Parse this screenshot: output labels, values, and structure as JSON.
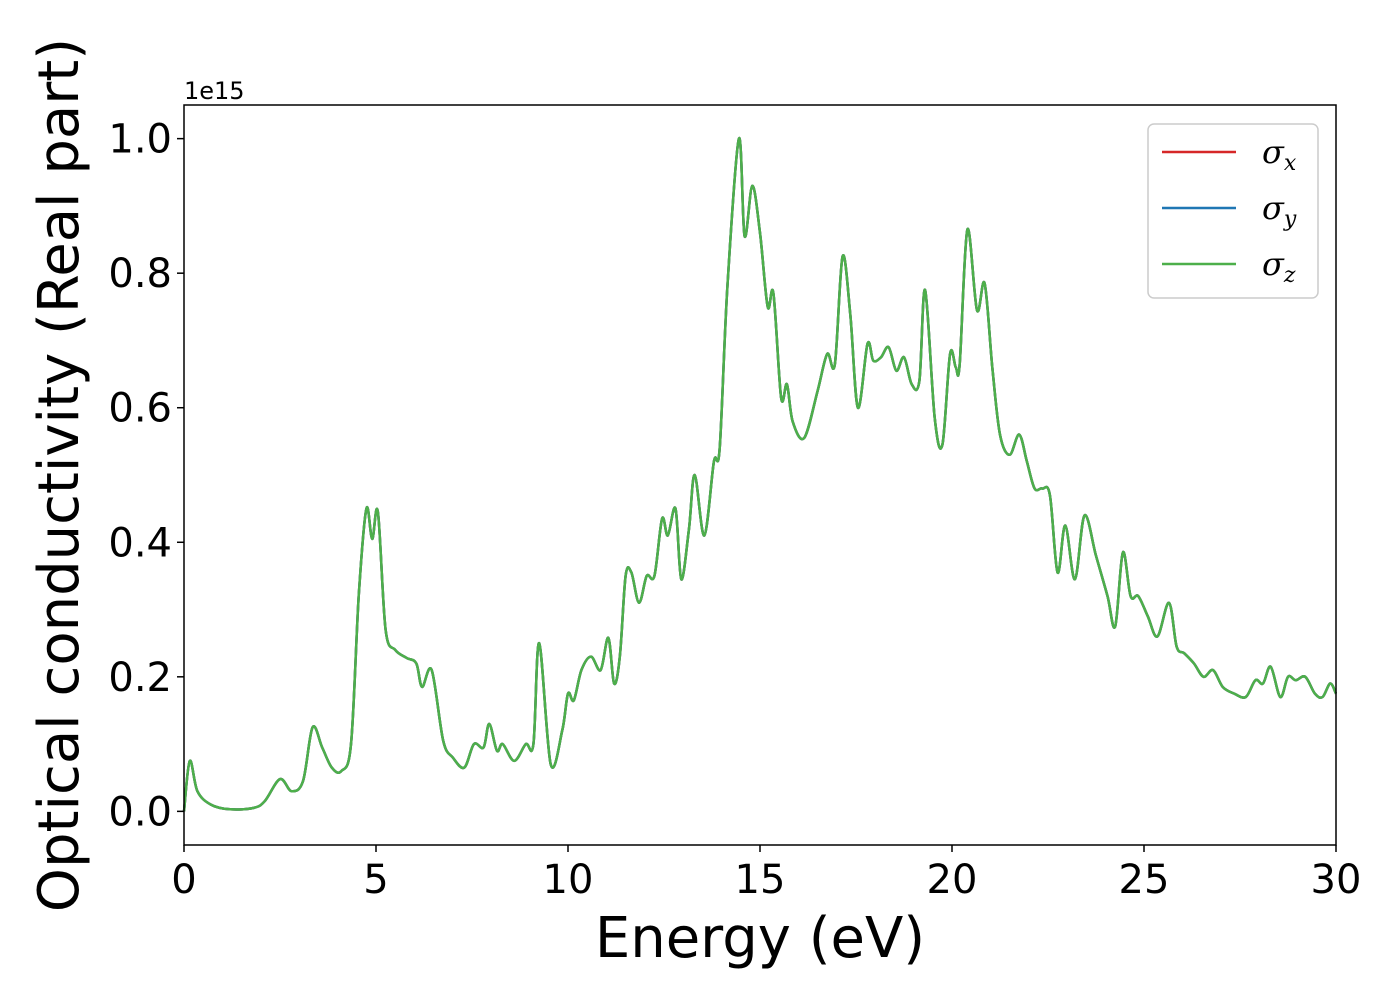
{
  "chart_data": {
    "type": "line",
    "xlabel": "Energy (eV)",
    "ylabel": "Optical conductivity (Real part)",
    "y_offset_label": "1e15",
    "xlim": [
      0,
      30
    ],
    "ylim": [
      -0.05,
      1.05
    ],
    "xticks": [
      0,
      5,
      10,
      15,
      20,
      25,
      30
    ],
    "xtick_labels": [
      "0",
      "5",
      "10",
      "15",
      "20",
      "25",
      "30"
    ],
    "yticks": [
      0.0,
      0.2,
      0.4,
      0.6,
      0.8,
      1.0
    ],
    "ytick_labels": [
      "0.0",
      "0.2",
      "0.4",
      "0.6",
      "0.8",
      "1.0"
    ],
    "grid": false,
    "legend_position": "top-right",
    "series": [
      {
        "name": "σx",
        "symbol": "σ",
        "subscript": "x",
        "color": "#d62728"
      },
      {
        "name": "σy",
        "symbol": "σ",
        "subscript": "y",
        "color": "#1f77b4"
      },
      {
        "name": "σz",
        "symbol": "σ",
        "subscript": "z",
        "color": "#4daf4a"
      }
    ],
    "x": [
      0,
      0.15,
      0.35,
      0.7,
      1.2,
      1.8,
      2.1,
      2.5,
      2.8,
      3.1,
      3.35,
      3.6,
      3.85,
      4.1,
      4.35,
      4.55,
      4.75,
      4.9,
      5.05,
      5.25,
      5.5,
      5.8,
      6.05,
      6.2,
      6.45,
      6.75,
      7.0,
      7.3,
      7.55,
      7.8,
      7.95,
      8.15,
      8.3,
      8.6,
      8.9,
      9.1,
      9.25,
      9.55,
      9.85,
      10.0,
      10.15,
      10.35,
      10.6,
      10.85,
      11.05,
      11.2,
      11.35,
      11.5,
      11.65,
      11.85,
      12.05,
      12.25,
      12.45,
      12.6,
      12.8,
      12.95,
      13.15,
      13.3,
      13.55,
      13.8,
      13.95,
      14.15,
      14.45,
      14.6,
      14.8,
      15.0,
      15.2,
      15.35,
      15.55,
      15.7,
      15.85,
      16.15,
      16.5,
      16.75,
      16.95,
      17.15,
      17.35,
      17.55,
      17.8,
      17.95,
      18.15,
      18.35,
      18.55,
      18.75,
      18.95,
      19.15,
      19.3,
      19.55,
      19.75,
      19.95,
      20.1,
      20.2,
      20.4,
      20.65,
      20.85,
      21.05,
      21.25,
      21.5,
      21.75,
      21.95,
      22.15,
      22.35,
      22.55,
      22.75,
      22.95,
      23.2,
      23.45,
      23.75,
      24.05,
      24.25,
      24.45,
      24.65,
      24.85,
      25.1,
      25.35,
      25.65,
      25.85,
      26.05,
      26.3,
      26.55,
      26.8,
      27.05,
      27.35,
      27.65,
      27.9,
      28.1,
      28.3,
      28.55,
      28.75,
      28.95,
      29.2,
      29.45,
      29.65,
      29.85,
      30.0
    ],
    "values": [
      0.0,
      0.075,
      0.03,
      0.01,
      0.003,
      0.005,
      0.015,
      0.048,
      0.03,
      0.045,
      0.125,
      0.095,
      0.065,
      0.06,
      0.1,
      0.32,
      0.45,
      0.405,
      0.445,
      0.27,
      0.24,
      0.228,
      0.22,
      0.185,
      0.21,
      0.105,
      0.08,
      0.065,
      0.1,
      0.095,
      0.13,
      0.09,
      0.1,
      0.075,
      0.1,
      0.1,
      0.25,
      0.07,
      0.12,
      0.175,
      0.165,
      0.21,
      0.23,
      0.21,
      0.258,
      0.19,
      0.23,
      0.35,
      0.355,
      0.31,
      0.35,
      0.35,
      0.435,
      0.41,
      0.45,
      0.345,
      0.42,
      0.5,
      0.41,
      0.52,
      0.54,
      0.78,
      1.0,
      0.855,
      0.93,
      0.86,
      0.75,
      0.77,
      0.615,
      0.635,
      0.58,
      0.555,
      0.625,
      0.68,
      0.665,
      0.825,
      0.74,
      0.6,
      0.695,
      0.67,
      0.675,
      0.69,
      0.655,
      0.675,
      0.635,
      0.64,
      0.775,
      0.585,
      0.545,
      0.68,
      0.66,
      0.665,
      0.865,
      0.745,
      0.785,
      0.66,
      0.56,
      0.53,
      0.56,
      0.52,
      0.48,
      0.48,
      0.47,
      0.355,
      0.425,
      0.345,
      0.44,
      0.38,
      0.32,
      0.275,
      0.385,
      0.32,
      0.32,
      0.29,
      0.26,
      0.31,
      0.245,
      0.235,
      0.22,
      0.2,
      0.21,
      0.185,
      0.175,
      0.17,
      0.195,
      0.19,
      0.215,
      0.17,
      0.2,
      0.195,
      0.2,
      0.175,
      0.17,
      0.19,
      0.175
    ]
  }
}
